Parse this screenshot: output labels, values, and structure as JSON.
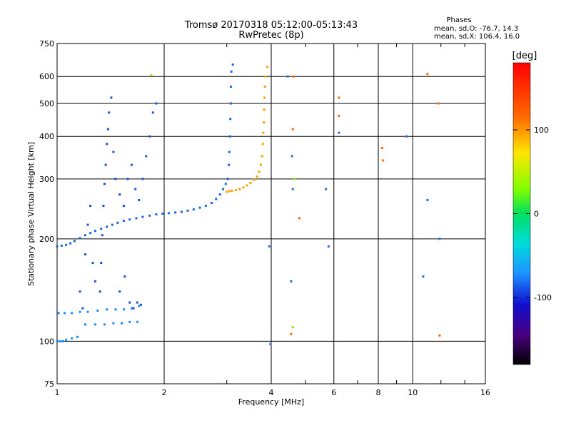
{
  "title_line1": "Tromsø 20170318 05:12:00-05:13:43",
  "title_line2": "RwPretec (8p)",
  "phase_info": {
    "heading": "Phases",
    "line1": "mean, sd,O: -76.7, 14.3",
    "line2": "mean, sd,X: 106.4, 16.0"
  },
  "chart_data": {
    "type": "scatter",
    "xlabel": "Frequency [MHz]",
    "ylabel": "Stationary phase Virtual Height [km]",
    "x_scale": "log",
    "y_scale": "log",
    "xlim": [
      1,
      16
    ],
    "ylim": [
      75,
      750
    ],
    "x_ticks": [
      1,
      2,
      4,
      6,
      8,
      10,
      16
    ],
    "x_tick_labels": [
      "1",
      "2",
      "4",
      "6",
      "8",
      "10",
      "16"
    ],
    "y_ticks": [
      75,
      100,
      200,
      300,
      400,
      500,
      600,
      750
    ],
    "y_tick_labels": [
      "75",
      "100",
      "200",
      "300",
      "400",
      "500",
      "600",
      "750"
    ],
    "grid": true,
    "colorbar": {
      "label": "[deg]",
      "range": [
        -180,
        180
      ],
      "ticks": [
        100,
        0,
        -100
      ],
      "tick_labels": [
        "100",
        "0",
        "-100"
      ]
    },
    "series": [
      {
        "color": "#1566e0",
        "points": [
          [
            1.0,
            190
          ],
          [
            1.03,
            191
          ],
          [
            1.06,
            192
          ],
          [
            1.09,
            194
          ],
          [
            1.12,
            197
          ],
          [
            1.16,
            201
          ],
          [
            1.2,
            205
          ],
          [
            1.24,
            208
          ],
          [
            1.28,
            211
          ],
          [
            1.33,
            214
          ],
          [
            1.38,
            217
          ],
          [
            1.43,
            220
          ],
          [
            1.48,
            223
          ],
          [
            1.54,
            226
          ],
          [
            1.6,
            228
          ],
          [
            1.67,
            230
          ],
          [
            1.74,
            232
          ],
          [
            1.82,
            234
          ],
          [
            1.9,
            236
          ],
          [
            1.98,
            237
          ],
          [
            2.06,
            238
          ],
          [
            2.15,
            239
          ],
          [
            2.24,
            240
          ],
          [
            2.33,
            242
          ],
          [
            2.42,
            244
          ],
          [
            2.52,
            247
          ],
          [
            2.62,
            250
          ],
          [
            2.72,
            255
          ],
          [
            2.8,
            262
          ],
          [
            2.87,
            270
          ],
          [
            2.93,
            280
          ],
          [
            2.98,
            290
          ],
          [
            3.02,
            300
          ],
          [
            3.04,
            330
          ],
          [
            3.05,
            360
          ],
          [
            3.06,
            400
          ],
          [
            3.07,
            450
          ],
          [
            3.08,
            500
          ],
          [
            3.08,
            560
          ],
          [
            3.09,
            620
          ],
          [
            3.12,
            650
          ]
        ]
      },
      {
        "color": "#1a8cff",
        "points": [
          [
            1.0,
            100
          ],
          [
            1.02,
            100
          ],
          [
            1.04,
            100
          ],
          [
            1.06,
            101
          ],
          [
            1.1,
            102
          ],
          [
            1.14,
            103
          ],
          [
            1.01,
            121
          ],
          [
            1.05,
            121
          ],
          [
            1.1,
            121
          ],
          [
            1.16,
            122
          ],
          [
            1.22,
            122
          ],
          [
            1.3,
            123
          ],
          [
            1.38,
            124
          ],
          [
            1.46,
            124
          ],
          [
            1.54,
            124
          ],
          [
            1.62,
            125
          ],
          [
            1.7,
            127
          ],
          [
            1.2,
            112
          ],
          [
            1.28,
            112
          ],
          [
            1.36,
            112
          ],
          [
            1.44,
            113
          ],
          [
            1.52,
            113
          ],
          [
            1.6,
            114
          ],
          [
            1.68,
            114
          ]
        ]
      },
      {
        "color": "#1e50d8",
        "points": [
          [
            1.32,
            140
          ],
          [
            1.33,
            170
          ],
          [
            1.34,
            205
          ],
          [
            1.35,
            250
          ],
          [
            1.36,
            290
          ],
          [
            1.37,
            330
          ],
          [
            1.38,
            380
          ],
          [
            1.39,
            420
          ],
          [
            1.4,
            470
          ],
          [
            1.42,
            520
          ],
          [
            1.44,
            360
          ],
          [
            1.46,
            300
          ],
          [
            1.5,
            270
          ],
          [
            1.54,
            250
          ],
          [
            1.58,
            300
          ],
          [
            1.62,
            330
          ],
          [
            1.66,
            280
          ],
          [
            1.7,
            260
          ],
          [
            1.74,
            300
          ],
          [
            1.78,
            350
          ],
          [
            1.82,
            400
          ],
          [
            1.86,
            470
          ],
          [
            1.9,
            500
          ],
          [
            1.2,
            180
          ],
          [
            1.22,
            220
          ],
          [
            1.24,
            250
          ],
          [
            1.26,
            170
          ],
          [
            1.28,
            150
          ],
          [
            1.16,
            140
          ],
          [
            1.18,
            125
          ],
          [
            1.5,
            140
          ],
          [
            1.55,
            155
          ],
          [
            1.6,
            130
          ],
          [
            1.64,
            125
          ],
          [
            1.68,
            130
          ],
          [
            1.72,
            128
          ]
        ]
      },
      {
        "color": "#ffa000",
        "points": [
          [
            3.0,
            275
          ],
          [
            3.05,
            276
          ],
          [
            3.1,
            277
          ],
          [
            3.18,
            278
          ],
          [
            3.26,
            280
          ],
          [
            3.34,
            283
          ],
          [
            3.42,
            287
          ],
          [
            3.5,
            292
          ],
          [
            3.58,
            298
          ],
          [
            3.65,
            305
          ],
          [
            3.7,
            315
          ],
          [
            3.74,
            330
          ],
          [
            3.77,
            350
          ],
          [
            3.79,
            380
          ],
          [
            3.8,
            410
          ],
          [
            3.81,
            440
          ],
          [
            3.82,
            480
          ],
          [
            3.83,
            520
          ],
          [
            3.84,
            560
          ],
          [
            3.86,
            600
          ],
          [
            3.9,
            640
          ]
        ]
      },
      {
        "color": "#ff6a00",
        "points": [
          [
            4.55,
            105
          ],
          [
            4.6,
            420
          ],
          [
            4.62,
            600
          ],
          [
            6.2,
            460
          ],
          [
            6.2,
            520
          ],
          [
            8.2,
            370
          ],
          [
            8.25,
            340
          ],
          [
            11.0,
            610
          ],
          [
            11.8,
            500
          ],
          [
            11.9,
            104
          ],
          [
            4.8,
            230
          ]
        ]
      },
      {
        "color": "#2a6ed0",
        "points": [
          [
            4.45,
            600
          ],
          [
            4.55,
            150
          ],
          [
            4.58,
            350
          ],
          [
            4.6,
            280
          ],
          [
            6.2,
            410
          ],
          [
            5.7,
            280
          ],
          [
            5.8,
            190
          ],
          [
            9.6,
            400
          ],
          [
            11.0,
            260
          ],
          [
            11.9,
            200
          ],
          [
            10.7,
            155
          ],
          [
            3.98,
            98
          ],
          [
            3.95,
            190
          ]
        ]
      },
      {
        "color": "#9ae600",
        "points": [
          [
            1.84,
            605
          ],
          [
            4.65,
            300
          ],
          [
            4.6,
            110
          ]
        ]
      }
    ]
  }
}
